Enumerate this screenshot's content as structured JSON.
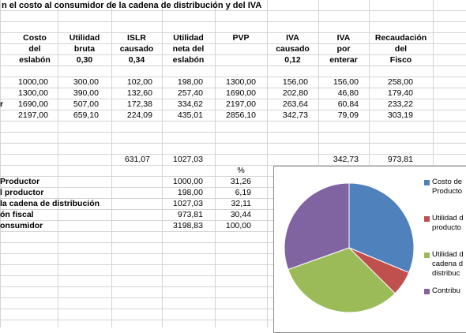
{
  "title": "n el costo al consumidor de la cadena de distribución y del IVA",
  "headers": [
    {
      "l1": "Costo",
      "l2": "del",
      "l3": "eslabón"
    },
    {
      "l1": "Utilidad",
      "l2": "bruta",
      "l3": "0,30"
    },
    {
      "l1": "ISLR",
      "l2": "causado",
      "l3": "0,34"
    },
    {
      "l1": "Utilidad",
      "l2": "neta del",
      "l3": "eslabón"
    },
    {
      "l1": "PVP",
      "l2": "",
      "l3": ""
    },
    {
      "l1": "IVA",
      "l2": "causado",
      "l3": "0,12"
    },
    {
      "l1": "IVA",
      "l2": "por",
      "l3": "enterar"
    },
    {
      "l1": "Recaudación",
      "l2": "del",
      "l3": "Fisco"
    }
  ],
  "rows": [
    {
      "label": "",
      "cells": [
        "1000,00",
        "300,00",
        "102,00",
        "198,00",
        "1300,00",
        "156,00",
        "156,00",
        "258,00"
      ]
    },
    {
      "label": "",
      "cells": [
        "1300,00",
        "390,00",
        "132,60",
        "257,40",
        "1690,00",
        "202,80",
        "46,80",
        "179,40"
      ]
    },
    {
      "label": "r",
      "cells": [
        "1690,00",
        "507,00",
        "172,38",
        "334,62",
        "2197,00",
        "263,64",
        "60,84",
        "233,22"
      ]
    },
    {
      "label": "",
      "cells": [
        "2197,00",
        "659,10",
        "224,09",
        "435,01",
        "2856,10",
        "342,73",
        "79,09",
        "303,19"
      ]
    }
  ],
  "totals": {
    "islr": "631,07",
    "neta": "1027,03",
    "iva": "342,73",
    "fisco": "973,81"
  },
  "pct_header": "%",
  "summary": [
    {
      "label": "Productor",
      "value": "1000,00",
      "pct": "31,26"
    },
    {
      "label": "l productor",
      "value": "198,00",
      "pct": "6,19"
    },
    {
      "label": "la cadena de distribución",
      "value": "1027,03",
      "pct": "32,11"
    },
    {
      "label": "ón fiscal",
      "value": "973,81",
      "pct": "30,44"
    },
    {
      "label": "onsumidor",
      "value": "3198,83",
      "pct": "100,00"
    }
  ],
  "chart_data": {
    "type": "pie",
    "title": "",
    "labels": [
      "Costo de Productor",
      "Utilidad del productor",
      "Utilidad de la cadena de distribución",
      "Contribución fiscal"
    ],
    "values": [
      31.26,
      6.19,
      32.11,
      30.44
    ],
    "colors": [
      "#4F81BD",
      "#C0504D",
      "#9BBB59",
      "#8064A2"
    ],
    "legend_position": "right"
  },
  "legend": [
    {
      "line1": "Costo de",
      "line2": "Producto",
      "line3": ""
    },
    {
      "line1": "Utilidad d",
      "line2": "producto",
      "line3": ""
    },
    {
      "line1": "Utilidad d",
      "line2": "cadena d",
      "line3": "distribuc"
    },
    {
      "line1": "Contribu",
      "line2": "",
      "line3": ""
    }
  ]
}
